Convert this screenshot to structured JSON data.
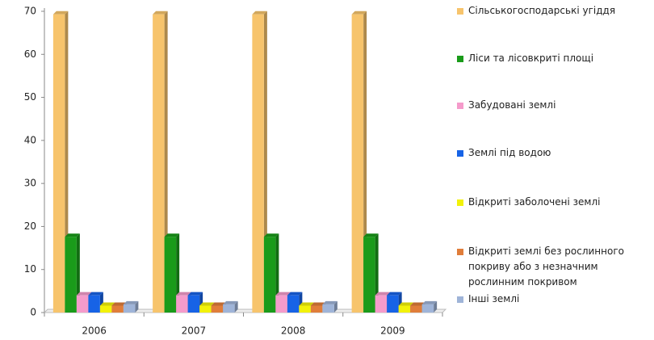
{
  "chart_data": {
    "type": "bar3d",
    "categories": [
      "2006",
      "2007",
      "2008",
      "2009"
    ],
    "ylim": [
      0,
      70
    ],
    "yticks": [
      0,
      10,
      20,
      30,
      40,
      50,
      60,
      70
    ],
    "series": [
      {
        "name": "Сільськогосподарські угіддя",
        "color": "#f7c46c",
        "values": [
          69.3,
          69.3,
          69.3,
          69.3
        ]
      },
      {
        "name": "Ліси та лісовкриті площі",
        "color": "#1a9b1a",
        "values": [
          17.6,
          17.6,
          17.6,
          17.6
        ]
      },
      {
        "name": "Забудовані землі",
        "color": "#f59bcb",
        "values": [
          4.0,
          4.0,
          4.0,
          4.0
        ]
      },
      {
        "name": "Землі під водою",
        "color": "#1763e6",
        "values": [
          4.0,
          4.0,
          4.0,
          4.0
        ]
      },
      {
        "name": "Відкриті заболочені землі",
        "color": "#f2f20a",
        "values": [
          1.6,
          1.6,
          1.6,
          1.6
        ]
      },
      {
        "name": "Відкриті землі без рослинного покриву або з незначним рослинним покривом",
        "color": "#e07d3a",
        "values": [
          1.6,
          1.6,
          1.6,
          1.6
        ]
      },
      {
        "name": "Інші землі",
        "color": "#9fb4d8",
        "values": [
          1.9,
          1.9,
          1.9,
          1.9
        ]
      }
    ]
  }
}
